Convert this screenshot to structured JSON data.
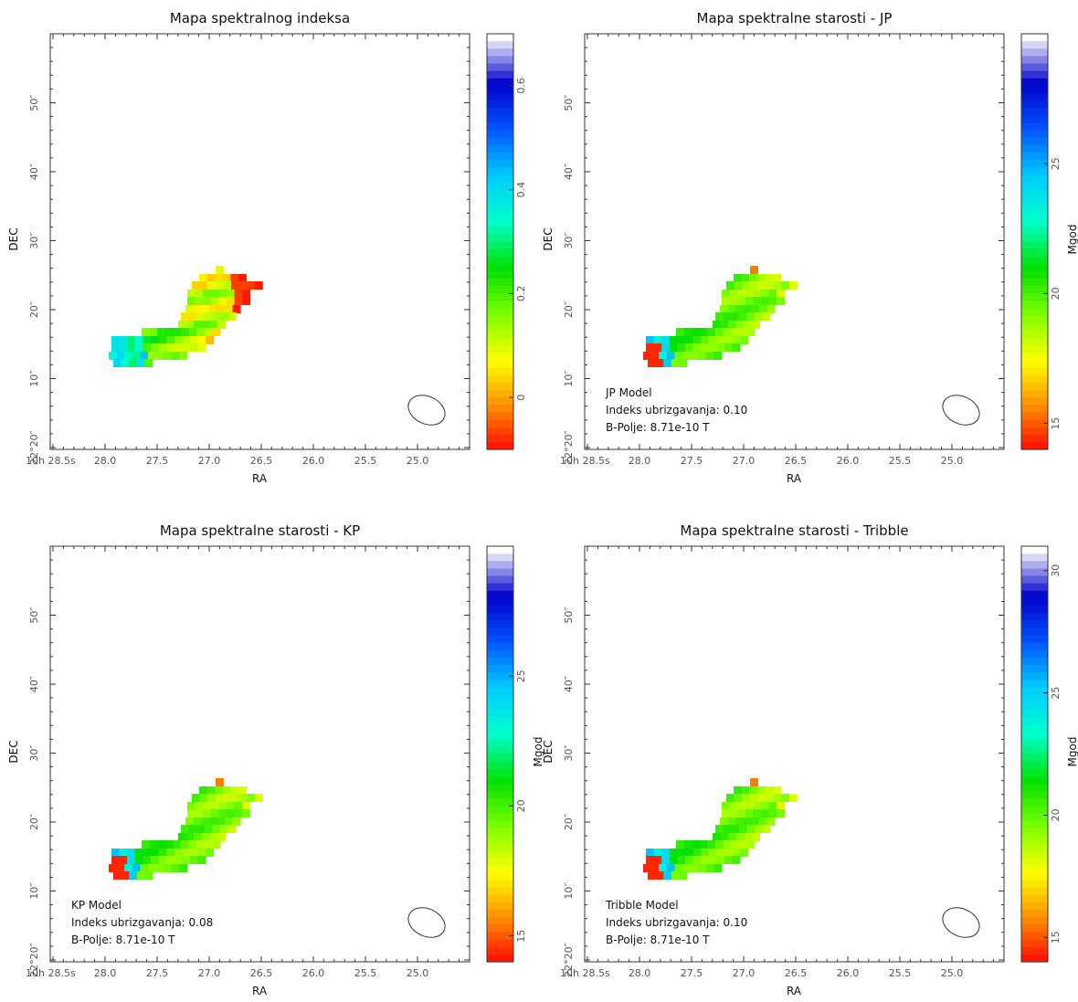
{
  "chart_data": [
    {
      "type": "heatmap",
      "title": "Mapa spektralnog indeksa",
      "xlabel": "RA",
      "ylabel": "DEC",
      "x_ticks": [
        "10h 28.5s",
        "28.0",
        "27.5",
        "27.0",
        "26.5",
        "26.0",
        "25.5",
        "25.0"
      ],
      "y_ticks": [
        "22°20″",
        "10″",
        "20″",
        "30″",
        "40″",
        "50″"
      ],
      "colorbar": {
        "label": "",
        "range": [
          -0.1,
          0.7
        ],
        "ticks": [
          "0",
          "0.2",
          "0.4",
          "0.6"
        ],
        "tick_values": [
          0,
          0.2,
          0.4,
          0.6
        ]
      },
      "annotations": [],
      "beam": "ellipse",
      "value_range": [
        -0.1,
        0.7
      ]
    },
    {
      "type": "heatmap",
      "title": "Mapa spektralne starosti - JP",
      "xlabel": "RA",
      "ylabel": "DEC",
      "x_ticks": [
        "10h 28.5s",
        "28.0",
        "27.5",
        "27.0",
        "26.5",
        "26.0",
        "25.5",
        "25.0"
      ],
      "y_ticks": [
        "22°20″",
        "10″",
        "20″",
        "30″",
        "40″",
        "50″"
      ],
      "colorbar": {
        "label": "Mgod",
        "range": [
          14,
          30
        ],
        "ticks": [
          "15",
          "20",
          "25"
        ],
        "tick_values": [
          15,
          20,
          25
        ]
      },
      "annotations": [
        "JP Model",
        "Indeks ubrizgavanja: 0.10",
        "B-Polje: 8.71e-10 T"
      ],
      "beam": "ellipse",
      "value_range": [
        14,
        30
      ]
    },
    {
      "type": "heatmap",
      "title": "Mapa spektralne starosti - KP",
      "xlabel": "RA",
      "ylabel": "DEC",
      "x_ticks": [
        "10h 28.5s",
        "28.0",
        "27.5",
        "27.0",
        "26.5",
        "26.0",
        "25.5",
        "25.0"
      ],
      "y_ticks": [
        "22°20″",
        "10″",
        "20″",
        "30″",
        "40″",
        "50″"
      ],
      "colorbar": {
        "label": "Mgod",
        "range": [
          14,
          30
        ],
        "ticks": [
          "15",
          "20",
          "25"
        ],
        "tick_values": [
          15,
          20,
          25
        ]
      },
      "annotations": [
        "KP Model",
        "Indeks ubrizgavanja: 0.08",
        "B-Polje: 8.71e-10 T"
      ],
      "beam": "ellipse",
      "value_range": [
        14,
        30
      ]
    },
    {
      "type": "heatmap",
      "title": "Mapa spektralne starosti - Tribble",
      "xlabel": "RA",
      "ylabel": "DEC",
      "x_ticks": [
        "10h 28.5s",
        "28.0",
        "27.5",
        "27.0",
        "26.5",
        "26.0",
        "25.5",
        "25.0"
      ],
      "y_ticks": [
        "22°20″",
        "10″",
        "20″",
        "30″",
        "40″",
        "50″"
      ],
      "colorbar": {
        "label": "Mgod",
        "range": [
          14,
          31
        ],
        "ticks": [
          "15",
          "20",
          "25",
          "30"
        ],
        "tick_values": [
          15,
          20,
          25,
          30
        ]
      },
      "annotations": [
        "Tribble Model",
        "Indeks ubrizgavanja: 0.10",
        "B-Polje: 8.71e-10 T"
      ],
      "beam": "ellipse",
      "value_range": [
        14,
        31
      ]
    }
  ],
  "colors": {
    "colormap": [
      "#ff0000",
      "#ff8c00",
      "#ffff00",
      "#7fff00",
      "#00e000",
      "#00ffcc",
      "#00ccff",
      "#0055ff",
      "#0000cc",
      "#ffffff"
    ],
    "frame": "#333333"
  }
}
